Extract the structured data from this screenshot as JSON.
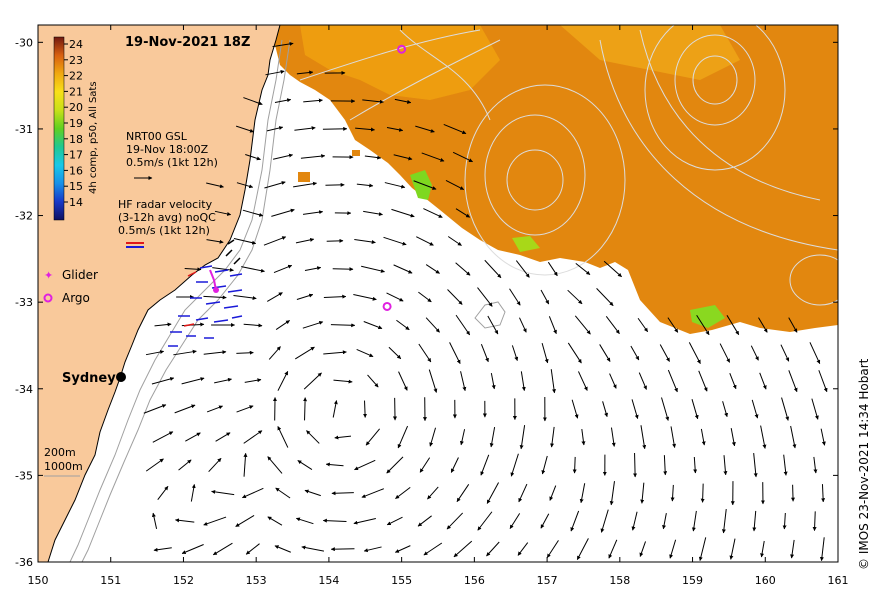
{
  "map": {
    "title": "19-Nov-2021 18Z",
    "credit": "© IMOS 23-Nov-2021 14:34 Hobart",
    "lon_range": [
      150,
      161
    ],
    "lat_range": [
      -36,
      -29.8
    ],
    "x_ticks": [
      "150",
      "151",
      "152",
      "153",
      "154",
      "155",
      "156",
      "157",
      "158",
      "159",
      "160",
      "161"
    ],
    "y_ticks": [
      "-30",
      "-31",
      "-32",
      "-33",
      "-34",
      "-35",
      "-36"
    ]
  },
  "colorbar": {
    "label": "4h comp, p50, All Sats",
    "ticks": [
      "24",
      "23",
      "22",
      "21",
      "20",
      "19",
      "18",
      "17",
      "16",
      "15",
      "14"
    ]
  },
  "legend": {
    "gsl_line1": "NRT00 GSL",
    "gsl_line2": "19-Nov 18:00Z",
    "gsl_line3": "0.5m/s (1kt 12h)",
    "hf_line1": "HF radar velocity",
    "hf_line2": "(3-12h avg) noQC",
    "hf_line3": "0.5m/s (1kt 12h)",
    "glider": "Glider",
    "argo": "Argo",
    "depth200": "200m",
    "depth1000": "1000m"
  },
  "places": {
    "sydney": "Sydney"
  },
  "colors": {
    "land": "#f9c99b",
    "ocean": "#ffffff",
    "sst_warm": "#e2870f",
    "sst_mid": "#f0a010",
    "sst_green": "#7ed820",
    "argo": "#e020e0",
    "hf_blue": "#1a1ad8",
    "hf_red": "#e01818",
    "contour": "#dcdcdc"
  },
  "features": {
    "argo_floats": [
      {
        "lon": 155.0,
        "lat": -30.08
      },
      {
        "lon": 154.8,
        "lat": -33.05
      }
    ]
  }
}
